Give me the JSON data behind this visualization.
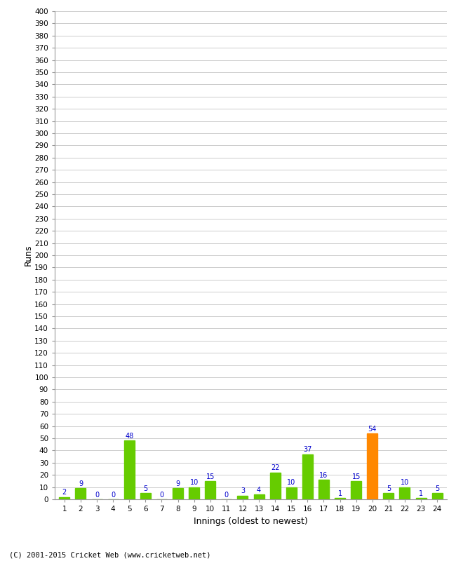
{
  "xlabel": "Innings (oldest to newest)",
  "ylabel": "Runs",
  "categories": [
    1,
    2,
    3,
    4,
    5,
    6,
    7,
    8,
    9,
    10,
    11,
    12,
    13,
    14,
    15,
    16,
    17,
    18,
    19,
    20,
    21,
    22,
    23,
    24
  ],
  "values": [
    2,
    9,
    0,
    0,
    48,
    5,
    0,
    9,
    10,
    15,
    0,
    3,
    4,
    22,
    10,
    37,
    16,
    1,
    15,
    54,
    5,
    10,
    1,
    5
  ],
  "bar_colors": [
    "#66cc00",
    "#66cc00",
    "#66cc00",
    "#66cc00",
    "#66cc00",
    "#66cc00",
    "#66cc00",
    "#66cc00",
    "#66cc00",
    "#66cc00",
    "#66cc00",
    "#66cc00",
    "#66cc00",
    "#66cc00",
    "#66cc00",
    "#66cc00",
    "#66cc00",
    "#66cc00",
    "#66cc00",
    "#ff8800",
    "#66cc00",
    "#66cc00",
    "#66cc00",
    "#66cc00"
  ],
  "ylim": [
    0,
    400
  ],
  "ytick_step": 10,
  "label_color": "#0000cc",
  "background_color": "#ffffff",
  "grid_color": "#cccccc",
  "footer": "(C) 2001-2015 Cricket Web (www.cricketweb.net)"
}
